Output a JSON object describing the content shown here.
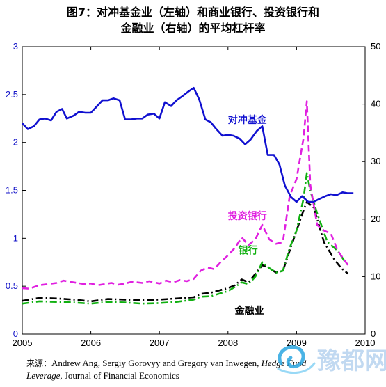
{
  "title": {
    "line1": "图7：对冲基金业（左轴）和商业银行、投资银行和",
    "line2": "金融业（右轴）的平均杠杆率"
  },
  "source": {
    "label": "来源：",
    "text1": "Andrew Ang, Sergiy Gorovyy and Gregory van Inwegen,",
    "text2": "Hedge Fund",
    "text3": "Leverage,",
    "text4": "Journal of Financial Economics"
  },
  "watermark": {
    "text": "豫都网"
  },
  "chart_data": {
    "type": "line",
    "x_axis": {
      "range": [
        2005,
        2010
      ],
      "ticks": [
        "2005",
        "2006",
        "2007",
        "2008",
        "2009",
        "2010"
      ]
    },
    "y_left": {
      "range": [
        0,
        3
      ],
      "ticks": [
        "0",
        "0.5",
        "1",
        "1.5",
        "2",
        "2.5",
        "3"
      ]
    },
    "y_right": {
      "range": [
        0,
        50
      ],
      "ticks": [
        "0",
        "10",
        "20",
        "30",
        "40",
        "50"
      ]
    },
    "grid": false,
    "series": [
      {
        "name": "对冲基金",
        "axis": "left",
        "color": "#1010d0",
        "style": "solid",
        "points": [
          [
            2005.0,
            2.2
          ],
          [
            2005.08,
            2.14
          ],
          [
            2005.17,
            2.17
          ],
          [
            2005.25,
            2.24
          ],
          [
            2005.33,
            2.25
          ],
          [
            2005.42,
            2.23
          ],
          [
            2005.5,
            2.32
          ],
          [
            2005.58,
            2.35
          ],
          [
            2005.65,
            2.25
          ],
          [
            2005.75,
            2.28
          ],
          [
            2005.83,
            2.32
          ],
          [
            2005.92,
            2.31
          ],
          [
            2006.0,
            2.31
          ],
          [
            2006.08,
            2.37
          ],
          [
            2006.17,
            2.44
          ],
          [
            2006.25,
            2.44
          ],
          [
            2006.33,
            2.46
          ],
          [
            2006.42,
            2.44
          ],
          [
            2006.5,
            2.24
          ],
          [
            2006.58,
            2.24
          ],
          [
            2006.67,
            2.25
          ],
          [
            2006.75,
            2.25
          ],
          [
            2006.83,
            2.29
          ],
          [
            2006.92,
            2.3
          ],
          [
            2007.0,
            2.25
          ],
          [
            2007.08,
            2.42
          ],
          [
            2007.17,
            2.38
          ],
          [
            2007.25,
            2.44
          ],
          [
            2007.33,
            2.48
          ],
          [
            2007.42,
            2.53
          ],
          [
            2007.5,
            2.57
          ],
          [
            2007.58,
            2.45
          ],
          [
            2007.67,
            2.24
          ],
          [
            2007.75,
            2.21
          ],
          [
            2007.83,
            2.14
          ],
          [
            2007.92,
            2.07
          ],
          [
            2008.0,
            2.08
          ],
          [
            2008.08,
            2.07
          ],
          [
            2008.17,
            2.04
          ],
          [
            2008.25,
            1.98
          ],
          [
            2008.33,
            2.03
          ],
          [
            2008.42,
            2.12
          ],
          [
            2008.5,
            2.17
          ],
          [
            2008.58,
            1.87
          ],
          [
            2008.67,
            1.87
          ],
          [
            2008.75,
            1.77
          ],
          [
            2008.83,
            1.55
          ],
          [
            2008.92,
            1.43
          ],
          [
            2009.0,
            1.38
          ],
          [
            2009.08,
            1.44
          ],
          [
            2009.17,
            1.38
          ],
          [
            2009.25,
            1.38
          ],
          [
            2009.33,
            1.41
          ],
          [
            2009.42,
            1.44
          ],
          [
            2009.5,
            1.46
          ],
          [
            2009.58,
            1.45
          ],
          [
            2009.67,
            1.48
          ],
          [
            2009.75,
            1.47
          ],
          [
            2009.83,
            1.47
          ]
        ]
      },
      {
        "name": "投资银行",
        "axis": "right",
        "color": "#e020e0",
        "style": "dash",
        "points": [
          [
            2005.0,
            8.0
          ],
          [
            2005.1,
            7.9
          ],
          [
            2005.25,
            8.5
          ],
          [
            2005.5,
            8.9
          ],
          [
            2005.6,
            9.3
          ],
          [
            2005.75,
            9.0
          ],
          [
            2005.9,
            8.7
          ],
          [
            2006.0,
            8.8
          ],
          [
            2006.1,
            8.5
          ],
          [
            2006.3,
            8.9
          ],
          [
            2006.4,
            8.6
          ],
          [
            2006.5,
            8.8
          ],
          [
            2006.6,
            9.1
          ],
          [
            2006.75,
            8.9
          ],
          [
            2006.85,
            9.2
          ],
          [
            2007.0,
            8.8
          ],
          [
            2007.1,
            9.3
          ],
          [
            2007.2,
            9.0
          ],
          [
            2007.3,
            9.4
          ],
          [
            2007.4,
            9.2
          ],
          [
            2007.5,
            9.6
          ],
          [
            2007.6,
            11.0
          ],
          [
            2007.7,
            11.6
          ],
          [
            2007.8,
            11.3
          ],
          [
            2007.9,
            12.6
          ],
          [
            2008.0,
            13.7
          ],
          [
            2008.1,
            15.0
          ],
          [
            2008.2,
            16.8
          ],
          [
            2008.3,
            15.5
          ],
          [
            2008.4,
            16.5
          ],
          [
            2008.5,
            19.0
          ],
          [
            2008.6,
            16.5
          ],
          [
            2008.7,
            15.7
          ],
          [
            2008.8,
            16.0
          ],
          [
            2008.9,
            24.0
          ],
          [
            2009.0,
            27.0
          ],
          [
            2009.1,
            34.0
          ],
          [
            2009.15,
            40.5
          ],
          [
            2009.2,
            26.0
          ],
          [
            2009.3,
            19.0
          ],
          [
            2009.4,
            18.0
          ],
          [
            2009.5,
            17.5
          ],
          [
            2009.6,
            14.5
          ],
          [
            2009.75,
            12.0
          ]
        ]
      },
      {
        "name": "银行",
        "axis": "right",
        "color": "#10b010",
        "style": "dashdot",
        "points": [
          [
            2005.0,
            5.3
          ],
          [
            2005.25,
            5.7
          ],
          [
            2005.5,
            5.6
          ],
          [
            2005.75,
            5.5
          ],
          [
            2006.0,
            5.3
          ],
          [
            2006.25,
            5.6
          ],
          [
            2006.5,
            5.5
          ],
          [
            2006.75,
            5.3
          ],
          [
            2007.0,
            5.4
          ],
          [
            2007.25,
            5.6
          ],
          [
            2007.5,
            6.0
          ],
          [
            2007.6,
            6.5
          ],
          [
            2007.75,
            6.6
          ],
          [
            2008.0,
            7.5
          ],
          [
            2008.1,
            8.2
          ],
          [
            2008.2,
            9.0
          ],
          [
            2008.3,
            8.7
          ],
          [
            2008.4,
            10.0
          ],
          [
            2008.5,
            12.5
          ],
          [
            2008.6,
            11.5
          ],
          [
            2008.7,
            10.7
          ],
          [
            2008.8,
            11.0
          ],
          [
            2008.9,
            15.0
          ],
          [
            2009.0,
            18.0
          ],
          [
            2009.1,
            23.5
          ],
          [
            2009.15,
            28.0
          ],
          [
            2009.2,
            25.0
          ],
          [
            2009.3,
            21.0
          ],
          [
            2009.45,
            16.0
          ],
          [
            2009.6,
            14.5
          ],
          [
            2009.75,
            11.8
          ]
        ]
      },
      {
        "name": "金融业",
        "axis": "right",
        "color": "#000000",
        "style": "dashdot",
        "points": [
          [
            2005.0,
            5.8
          ],
          [
            2005.25,
            6.3
          ],
          [
            2005.5,
            6.2
          ],
          [
            2005.75,
            6.0
          ],
          [
            2006.0,
            5.7
          ],
          [
            2006.25,
            6.1
          ],
          [
            2006.5,
            6.0
          ],
          [
            2006.75,
            5.9
          ],
          [
            2007.0,
            6.0
          ],
          [
            2007.25,
            6.2
          ],
          [
            2007.5,
            6.4
          ],
          [
            2007.6,
            7.0
          ],
          [
            2007.75,
            7.2
          ],
          [
            2008.0,
            8.0
          ],
          [
            2008.1,
            8.5
          ],
          [
            2008.2,
            9.5
          ],
          [
            2008.3,
            9.0
          ],
          [
            2008.4,
            10.5
          ],
          [
            2008.5,
            12.0
          ],
          [
            2008.6,
            11.5
          ],
          [
            2008.7,
            10.7
          ],
          [
            2008.8,
            11.0
          ],
          [
            2008.9,
            14.5
          ],
          [
            2009.0,
            18.0
          ],
          [
            2009.1,
            21.5
          ],
          [
            2009.15,
            23.0
          ],
          [
            2009.25,
            22.0
          ],
          [
            2009.4,
            16.0
          ],
          [
            2009.55,
            13.0
          ],
          [
            2009.65,
            11.5
          ],
          [
            2009.75,
            10.5
          ]
        ]
      }
    ],
    "labels": [
      {
        "text": "对冲基金",
        "series": "对冲基金",
        "x": 2008.0,
        "y": 2.2,
        "axis": "left"
      },
      {
        "text": "投资银行",
        "series": "投资银行",
        "x": 2008.0,
        "y": 20.0,
        "axis": "right"
      },
      {
        "text": "银行",
        "series": "银行",
        "x": 2008.15,
        "y": 14.0,
        "axis": "right"
      },
      {
        "text": "金融业",
        "series": "金融业",
        "x": 2008.1,
        "y": 3.5,
        "axis": "right"
      }
    ]
  }
}
